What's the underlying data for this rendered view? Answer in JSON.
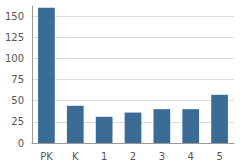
{
  "chart_data": {
    "type": "bar",
    "categories": [
      "PK",
      "K",
      "1",
      "2",
      "3",
      "4",
      "5"
    ],
    "values": [
      160,
      44,
      31,
      36,
      40,
      40,
      57
    ],
    "color": "#3b6c96",
    "ylim": [
      0,
      162
    ],
    "yticks": [
      0,
      25,
      50,
      75,
      100,
      125,
      150
    ],
    "grid": true
  }
}
